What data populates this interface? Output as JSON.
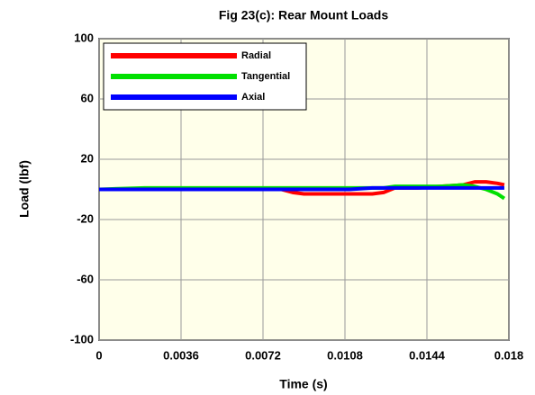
{
  "chart_data": {
    "type": "line",
    "title": "Fig 23(c): Rear Mount Loads",
    "xlabel": "Time (s)",
    "ylabel": "Load (lbf)",
    "x": [
      0,
      0.002,
      0.004,
      0.006,
      0.008,
      0.0085,
      0.009,
      0.01,
      0.011,
      0.012,
      0.0125,
      0.013,
      0.014,
      0.015,
      0.016,
      0.0165,
      0.017,
      0.0175,
      0.0178
    ],
    "series": [
      {
        "name": "Radial",
        "color": "#ff0000",
        "values": [
          0,
          0,
          0,
          0,
          0,
          -2,
          -3,
          -3,
          -3,
          -3,
          -2,
          1,
          1,
          2,
          3,
          5,
          5,
          4,
          3
        ]
      },
      {
        "name": "Tangential",
        "color": "#00e000",
        "values": [
          0,
          1,
          1,
          1,
          1,
          1,
          1,
          1,
          1,
          1,
          1,
          2,
          2,
          2,
          3,
          2,
          0,
          -3,
          -6
        ]
      },
      {
        "name": "Axial",
        "color": "#0000ff",
        "values": [
          0,
          0,
          0,
          0,
          0,
          0,
          0,
          0,
          0,
          1,
          1,
          1,
          1,
          1,
          1,
          1,
          1,
          1,
          1
        ]
      }
    ],
    "xlim": [
      0,
      0.018
    ],
    "xticks": [
      0,
      0.0036,
      0.0072,
      0.0108,
      0.0144,
      0.018
    ],
    "ylim": [
      -100,
      100
    ],
    "yticks": [
      -100,
      -60,
      -20,
      20,
      60,
      100
    ],
    "grid": true,
    "legend": "upper left"
  }
}
